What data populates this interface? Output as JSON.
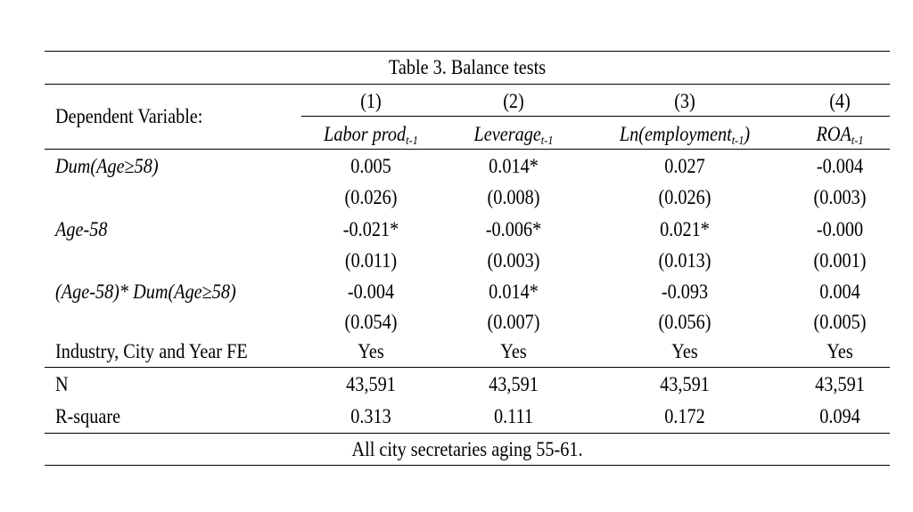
{
  "table": {
    "title": "Table 3. Balance tests",
    "dep_var_label": "Dependent Variable:",
    "columns": [
      {
        "num": "(1)",
        "var": "Labor prod",
        "sub": "t-1",
        "suffix": ""
      },
      {
        "num": "(2)",
        "var": "Leverage",
        "sub": "t-1",
        "suffix": ""
      },
      {
        "num": "(3)",
        "var": "Ln(employment",
        "sub": "t-1",
        "suffix": ")"
      },
      {
        "num": "(4)",
        "var": "ROA",
        "sub": "t-1",
        "suffix": ""
      }
    ],
    "rows": [
      {
        "label": "Dum(Age≥58)",
        "coef": [
          "0.005",
          "0.014*",
          "0.027",
          "-0.004"
        ],
        "se": [
          "(0.026)",
          "(0.008)",
          "(0.026)",
          "(0.003)"
        ]
      },
      {
        "label": "Age-58",
        "coef": [
          "-0.021*",
          "-0.006*",
          "0.021*",
          "-0.000"
        ],
        "se": [
          "(0.011)",
          "(0.003)",
          "(0.013)",
          "(0.001)"
        ]
      },
      {
        "label": "(Age-58)* Dum(Age≥58)",
        "coef": [
          "-0.004",
          "0.014*",
          "-0.093",
          "0.004"
        ],
        "se": [
          "(0.054)",
          "(0.007)",
          "(0.056)",
          "(0.005)"
        ]
      }
    ],
    "fe": {
      "label": "Industry, City and Year FE",
      "values": [
        "Yes",
        "Yes",
        "Yes",
        "Yes"
      ]
    },
    "n": {
      "label": "N",
      "values": [
        "43,591",
        "43,591",
        "43,591",
        "43,591"
      ]
    },
    "r2": {
      "label": "R-square",
      "values": [
        "0.313",
        "0.111",
        "0.172",
        "0.094"
      ]
    },
    "note": "All city secretaries aging 55-61."
  }
}
